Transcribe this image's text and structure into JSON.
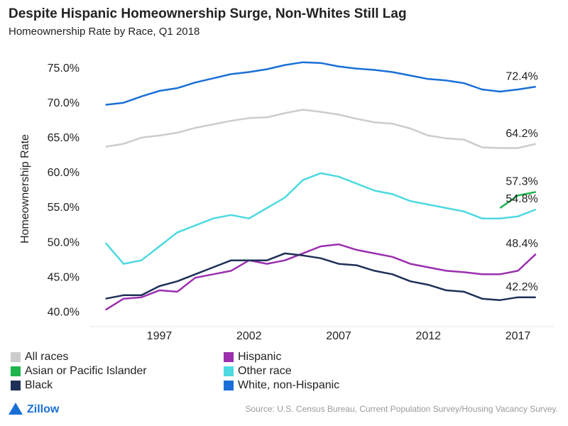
{
  "chart_data": {
    "type": "line",
    "title": "Despite Hispanic Homeownership Surge, Non-Whites Still Lag",
    "subtitle": "Homeownership Rate by Race, Q1 2018",
    "y_label": "Homeownership Rate",
    "source": "Source: U.S. Census Bureau, Current Population Survey/Housing Vacancy Survey.",
    "brand": "Zillow",
    "x": [
      1994,
      1995,
      1996,
      1997,
      1998,
      1999,
      2000,
      2001,
      2002,
      2003,
      2004,
      2005,
      2006,
      2007,
      2008,
      2009,
      2010,
      2011,
      2012,
      2013,
      2014,
      2015,
      2016,
      2017,
      2018
    ],
    "xlim": [
      1993.1,
      2019
    ],
    "xticks": [
      1997,
      2002,
      2007,
      2012,
      2017
    ],
    "ylim": [
      38,
      77.5
    ],
    "yticks": [
      {
        "value": 40,
        "label": "40.0%"
      },
      {
        "value": 45,
        "label": "45.0%"
      },
      {
        "value": 50,
        "label": "50.0%"
      },
      {
        "value": 55,
        "label": "55.0%"
      },
      {
        "value": 60,
        "label": "60.0%"
      },
      {
        "value": 65,
        "label": "65.0%"
      },
      {
        "value": 70,
        "label": "70.0%"
      },
      {
        "value": 75,
        "label": "75.0%"
      }
    ],
    "grid": false,
    "series": [
      {
        "name": "All races",
        "color": "#cccccc",
        "values": [
          63.8,
          64.2,
          65.1,
          65.4,
          65.8,
          66.5,
          67.0,
          67.5,
          67.9,
          68.0,
          68.6,
          69.1,
          68.8,
          68.4,
          67.8,
          67.3,
          67.1,
          66.4,
          65.4,
          65.0,
          64.8,
          63.7,
          63.6,
          63.6,
          64.2
        ],
        "value_labels": [
          null,
          null,
          null,
          null,
          null,
          null,
          null,
          null,
          null,
          null,
          null,
          null,
          null,
          null,
          null,
          null,
          null,
          null,
          null,
          null,
          null,
          null,
          null,
          null,
          "64.2%"
        ]
      },
      {
        "name": "Hispanic",
        "color": "#9b2fae",
        "values": [
          40.4,
          42.0,
          42.2,
          43.2,
          43.0,
          45.0,
          45.5,
          46.0,
          47.5,
          47.0,
          47.5,
          48.5,
          49.5,
          49.8,
          49.0,
          48.5,
          48.0,
          47.0,
          46.5,
          46.0,
          45.8,
          45.5,
          45.5,
          46.0,
          48.4
        ],
        "value_labels": [
          null,
          null,
          null,
          null,
          null,
          null,
          null,
          null,
          null,
          null,
          null,
          null,
          null,
          null,
          null,
          null,
          null,
          null,
          null,
          null,
          null,
          null,
          null,
          null,
          "48.4%"
        ]
      },
      {
        "name": "Asian or Pacific Islander",
        "color": "#1db34d",
        "values": [
          null,
          null,
          null,
          null,
          null,
          null,
          null,
          null,
          null,
          null,
          null,
          null,
          null,
          null,
          null,
          null,
          null,
          null,
          null,
          null,
          null,
          null,
          55.0,
          56.8,
          57.3
        ],
        "value_labels": [
          null,
          null,
          null,
          null,
          null,
          null,
          null,
          null,
          null,
          null,
          null,
          null,
          null,
          null,
          null,
          null,
          null,
          null,
          null,
          null,
          null,
          null,
          null,
          null,
          "57.3%"
        ]
      },
      {
        "name": "Other race",
        "color": "#4dd9e0",
        "values": [
          50.0,
          47.0,
          47.5,
          49.5,
          51.5,
          52.5,
          53.5,
          54.0,
          53.5,
          55.0,
          56.5,
          59.0,
          60.0,
          59.5,
          58.5,
          57.5,
          57.0,
          56.0,
          55.5,
          55.0,
          54.5,
          53.5,
          53.5,
          53.8,
          54.8
        ],
        "value_labels": [
          null,
          null,
          null,
          null,
          null,
          null,
          null,
          null,
          null,
          null,
          null,
          null,
          null,
          null,
          null,
          null,
          null,
          null,
          null,
          null,
          null,
          null,
          null,
          null,
          "54.8%"
        ]
      },
      {
        "name": "Black",
        "color": "#1e3057",
        "values": [
          42.0,
          42.5,
          42.5,
          43.8,
          44.5,
          45.5,
          46.5,
          47.5,
          47.5,
          47.5,
          48.5,
          48.2,
          47.8,
          47.0,
          46.8,
          46.0,
          45.5,
          44.5,
          44.0,
          43.2,
          43.0,
          42.0,
          41.8,
          42.2,
          42.2
        ],
        "value_labels": [
          null,
          null,
          null,
          null,
          null,
          null,
          null,
          null,
          null,
          null,
          null,
          null,
          null,
          null,
          null,
          null,
          null,
          null,
          null,
          null,
          null,
          null,
          null,
          null,
          "42.2%"
        ]
      },
      {
        "name": "White, non-Hispanic",
        "color": "#1a6fd6",
        "values": [
          69.8,
          70.1,
          71.0,
          71.8,
          72.2,
          73.0,
          73.6,
          74.2,
          74.5,
          74.9,
          75.5,
          75.9,
          75.8,
          75.3,
          75.0,
          74.8,
          74.5,
          74.0,
          73.5,
          73.3,
          72.9,
          72.0,
          71.7,
          72.0,
          72.4
        ],
        "value_labels": [
          null,
          null,
          null,
          null,
          null,
          null,
          null,
          null,
          null,
          null,
          null,
          null,
          null,
          null,
          null,
          null,
          null,
          null,
          null,
          null,
          null,
          null,
          null,
          null,
          "72.4%"
        ]
      }
    ]
  }
}
